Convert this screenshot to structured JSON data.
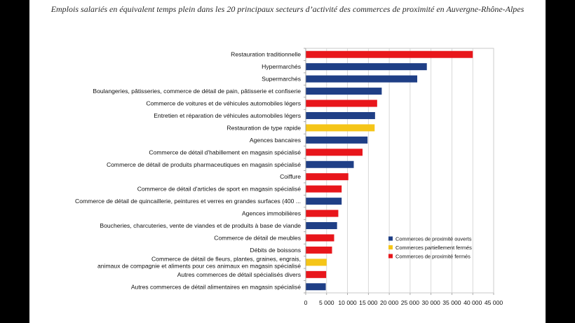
{
  "chart_data": {
    "type": "bar",
    "orientation": "horizontal",
    "title": "Emplois salariés en équivalent temps plein dans les 20 principaux secteurs d’activité des commerces de proximité en Auvergne-Rhône-Alpes",
    "xlabel": "",
    "ylabel": "",
    "xlim": [
      0,
      45000
    ],
    "xticks": [
      0,
      5000,
      10000,
      15000,
      20000,
      25000,
      30000,
      35000,
      40000,
      45000
    ],
    "xtick_labels": [
      "0",
      "5 000",
      "10 000",
      "15 000",
      "20 000",
      "25 000",
      "30 000",
      "35 000",
      "40 000",
      "45 000"
    ],
    "grid": true,
    "legend_position": "right",
    "series_colors": {
      "ouverts": "#1f3f86",
      "partiellement": "#f5c518",
      "fermes": "#e8161b"
    },
    "legend": [
      {
        "key": "ouverts",
        "label": "Commerces de proximité ouverts"
      },
      {
        "key": "partiellement",
        "label": "Commerces partiellement fermés"
      },
      {
        "key": "fermes",
        "label": "Commerces de proximité fermés"
      }
    ],
    "bars": [
      {
        "label": [
          "Restauration traditionnelle"
        ],
        "value": 40000,
        "series": "fermes"
      },
      {
        "label": [
          "Hypermarchés"
        ],
        "value": 29000,
        "series": "ouverts"
      },
      {
        "label": [
          "Supermarchés"
        ],
        "value": 26700,
        "series": "ouverts"
      },
      {
        "label": [
          "Boulangeries, pâtisseries, commerce de détail de pain, pâtisserie et confiserie"
        ],
        "value": 18200,
        "series": "ouverts"
      },
      {
        "label": [
          "Commerce de voitures et de véhicules automobiles légers"
        ],
        "value": 17100,
        "series": "fermes"
      },
      {
        "label": [
          "Entretien et réparation de véhicules automobiles légers"
        ],
        "value": 16600,
        "series": "ouverts"
      },
      {
        "label": [
          "Restauration de type rapide"
        ],
        "value": 16500,
        "series": "partiellement"
      },
      {
        "label": [
          "Agences bancaires"
        ],
        "value": 14800,
        "series": "ouverts"
      },
      {
        "label": [
          "Commerce de détail d'habillement en magasin spécialisé"
        ],
        "value": 13600,
        "series": "fermes"
      },
      {
        "label": [
          "Commerce de détail de produits pharmaceutiques en magasin spécialisé"
        ],
        "value": 11500,
        "series": "ouverts"
      },
      {
        "label": [
          "Coiffure"
        ],
        "value": 10200,
        "series": "fermes"
      },
      {
        "label": [
          "Commerce de détail d'articles de sport en magasin spécialisé"
        ],
        "value": 8600,
        "series": "fermes"
      },
      {
        "label": [
          "Commerce de détail de quincaillerie, peintures et verres en grandes surfaces (400 ..."
        ],
        "value": 8600,
        "series": "ouverts"
      },
      {
        "label": [
          "Agences immobilières"
        ],
        "value": 7800,
        "series": "fermes"
      },
      {
        "label": [
          "Boucheries, charcuteries, vente de viandes et de produits à base de viande"
        ],
        "value": 7500,
        "series": "ouverts"
      },
      {
        "label": [
          "Commerce de détail de meubles"
        ],
        "value": 6800,
        "series": "fermes"
      },
      {
        "label": [
          "Débits de boissons"
        ],
        "value": 6300,
        "series": "fermes"
      },
      {
        "label": [
          "Commerce de détail de fleurs, plantes, graines, engrais,",
          "animaux de compagnie et aliments pour ces animaux en magasin spécialisé"
        ],
        "value": 5000,
        "series": "partiellement"
      },
      {
        "label": [
          "Autres commerces de détail spécialisés divers"
        ],
        "value": 4900,
        "series": "fermes"
      },
      {
        "label": [
          "Autres commerces de détail alimentaires en magasin spécialisé"
        ],
        "value": 4800,
        "series": "ouverts"
      }
    ]
  }
}
